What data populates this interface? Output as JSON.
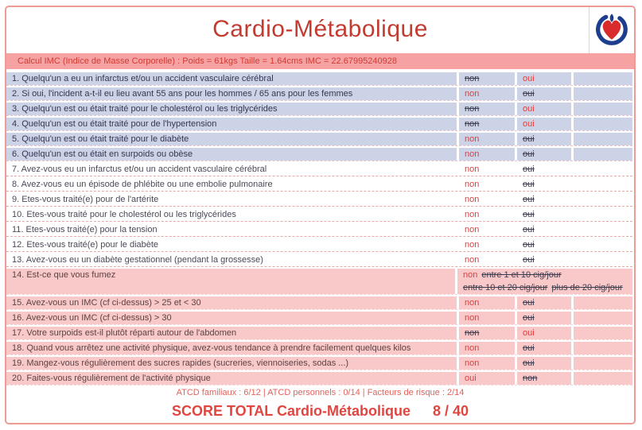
{
  "header": {
    "title": "Cardio-Métabolique",
    "logo": "heart-in-blue-circle"
  },
  "imc_bar": {
    "text": "Calcul IMC (Indice de Masse Corporelle) : Poids = 61kgs Taille = 1.64cms IMC = 22.67995240928"
  },
  "table": {
    "columns": [
      "question",
      "non",
      "oui",
      ""
    ],
    "rows": [
      {
        "num": "1.",
        "text": "Quelqu'un a eu un infarctus et/ou un accident vasculaire cérébral",
        "group": "family",
        "answers": [
          {
            "text": "non",
            "state": "rejected"
          },
          {
            "text": "oui",
            "state": "selected"
          }
        ]
      },
      {
        "num": "2.",
        "text": "Si oui, l'incident a-t-il eu lieu avant 55 ans pour les hommes / 65 ans pour les femmes",
        "group": "family",
        "answers": [
          {
            "text": "non",
            "state": "selected"
          },
          {
            "text": "oui",
            "state": "rejected"
          }
        ]
      },
      {
        "num": "3.",
        "text": "Quelqu'un est ou était traité pour le cholestérol ou les triglycérides",
        "group": "family",
        "answers": [
          {
            "text": "non",
            "state": "rejected"
          },
          {
            "text": "oui",
            "state": "selected"
          }
        ]
      },
      {
        "num": "4.",
        "text": "Quelqu'un est ou était traité pour de l'hypertension",
        "group": "family",
        "answers": [
          {
            "text": "non",
            "state": "rejected"
          },
          {
            "text": "oui",
            "state": "selected"
          }
        ]
      },
      {
        "num": "5.",
        "text": "Quelqu'un est ou était traité pour le diabète",
        "group": "family",
        "answers": [
          {
            "text": "non",
            "state": "selected"
          },
          {
            "text": "oui",
            "state": "rejected"
          }
        ]
      },
      {
        "num": "6.",
        "text": "Quelqu'un est ou était en surpoids ou obèse",
        "group": "family",
        "answers": [
          {
            "text": "non",
            "state": "selected"
          },
          {
            "text": "oui",
            "state": "rejected"
          }
        ]
      },
      {
        "num": "7.",
        "text": "Avez-vous eu un infarctus et/ou un accident vasculaire cérébral",
        "group": "personal",
        "answers": [
          {
            "text": "non",
            "state": "selected"
          },
          {
            "text": "oui",
            "state": "rejected"
          }
        ]
      },
      {
        "num": "8.",
        "text": "Avez-vous eu un épisode de phlébite ou une embolie pulmonaire",
        "group": "personal",
        "answers": [
          {
            "text": "non",
            "state": "selected"
          },
          {
            "text": "oui",
            "state": "rejected"
          }
        ]
      },
      {
        "num": "9.",
        "text": "Etes-vous traité(e) pour de l'artérite",
        "group": "personal",
        "answers": [
          {
            "text": "non",
            "state": "selected"
          },
          {
            "text": "oui",
            "state": "rejected"
          }
        ]
      },
      {
        "num": "10.",
        "text": "Etes-vous traité pour le cholestérol ou les triglycérides",
        "group": "personal",
        "answers": [
          {
            "text": "non",
            "state": "selected"
          },
          {
            "text": "oui",
            "state": "rejected"
          }
        ]
      },
      {
        "num": "11.",
        "text": "Etes-vous traité(e) pour la tension",
        "group": "personal",
        "answers": [
          {
            "text": "non",
            "state": "selected"
          },
          {
            "text": "oui",
            "state": "rejected"
          }
        ]
      },
      {
        "num": "12.",
        "text": "Etes-vous traité(e) pour le diabète",
        "group": "personal",
        "answers": [
          {
            "text": "non",
            "state": "selected"
          },
          {
            "text": "oui",
            "state": "rejected"
          }
        ]
      },
      {
        "num": "13.",
        "text": "Avez-vous eu un diabète gestationnel (pendant la grossesse)",
        "group": "personal",
        "answers": [
          {
            "text": "non",
            "state": "selected"
          },
          {
            "text": "oui",
            "state": "rejected"
          }
        ]
      },
      {
        "num": "14.",
        "text": "Est-ce que vous fumez",
        "group": "risk",
        "merged": true,
        "answer_lines": [
          [
            {
              "text": "non",
              "state": "selected"
            },
            {
              "text": "entre 1 et 10 cig/jour",
              "state": "rejected"
            }
          ],
          [
            {
              "text": "entre 10 et 20 cig/jour",
              "state": "rejected"
            },
            {
              "text": "plus de 20 cig/jour",
              "state": "rejected"
            }
          ]
        ]
      },
      {
        "num": "15.",
        "text": "Avez-vous un IMC (cf ci-dessus) > 25 et < 30",
        "group": "risk",
        "answers": [
          {
            "text": "non",
            "state": "selected"
          },
          {
            "text": "oui",
            "state": "rejected"
          }
        ]
      },
      {
        "num": "16.",
        "text": "Avez-vous un IMC (cf ci-dessus) > 30",
        "group": "risk",
        "answers": [
          {
            "text": "non",
            "state": "selected"
          },
          {
            "text": "oui",
            "state": "rejected"
          }
        ]
      },
      {
        "num": "17.",
        "text": "Votre surpoids est-il plutôt réparti autour de l'abdomen",
        "group": "risk",
        "answers": [
          {
            "text": "non",
            "state": "rejected"
          },
          {
            "text": "oui",
            "state": "selected"
          }
        ]
      },
      {
        "num": "18.",
        "text": "Quand vous arrêtez une activité physique, avez-vous tendance à prendre facilement quelques kilos",
        "group": "risk",
        "answers": [
          {
            "text": "non",
            "state": "selected"
          },
          {
            "text": "oui",
            "state": "rejected"
          }
        ]
      },
      {
        "num": "19.",
        "text": "Mangez-vous régulièrement des sucres rapides (sucreries, viennoiseries, sodas ...)",
        "group": "risk",
        "answers": [
          {
            "text": "non",
            "state": "selected"
          },
          {
            "text": "oui",
            "state": "rejected"
          }
        ]
      },
      {
        "num": "20.",
        "text": "Faites-vous régulièrement de l'activité physique",
        "group": "risk",
        "answers": [
          {
            "text": "oui",
            "state": "selected"
          },
          {
            "text": "non",
            "state": "rejected"
          }
        ]
      }
    ]
  },
  "footer": {
    "subtotals": "ATCD familiaux : 6/12 | ATCD personnels : 0/14 | Facteurs de risque : 2/14",
    "score_label": "SCORE TOTAL Cardio-Métabolique",
    "score_value": "8 / 40"
  },
  "colors": {
    "accent_red": "#c23b31",
    "selected_text": "#e23d3d",
    "struck_text": "#3c3c4e",
    "family_row_bg": "#ccd3e6",
    "personal_row_bg": "#ffffff",
    "risk_row_bg": "#f9c8c8",
    "imc_bar_bg": "#f7a2a2",
    "card_border": "#ee9b96",
    "logo_heart": "#d92b2b",
    "logo_blue": "#1d3e8e"
  }
}
